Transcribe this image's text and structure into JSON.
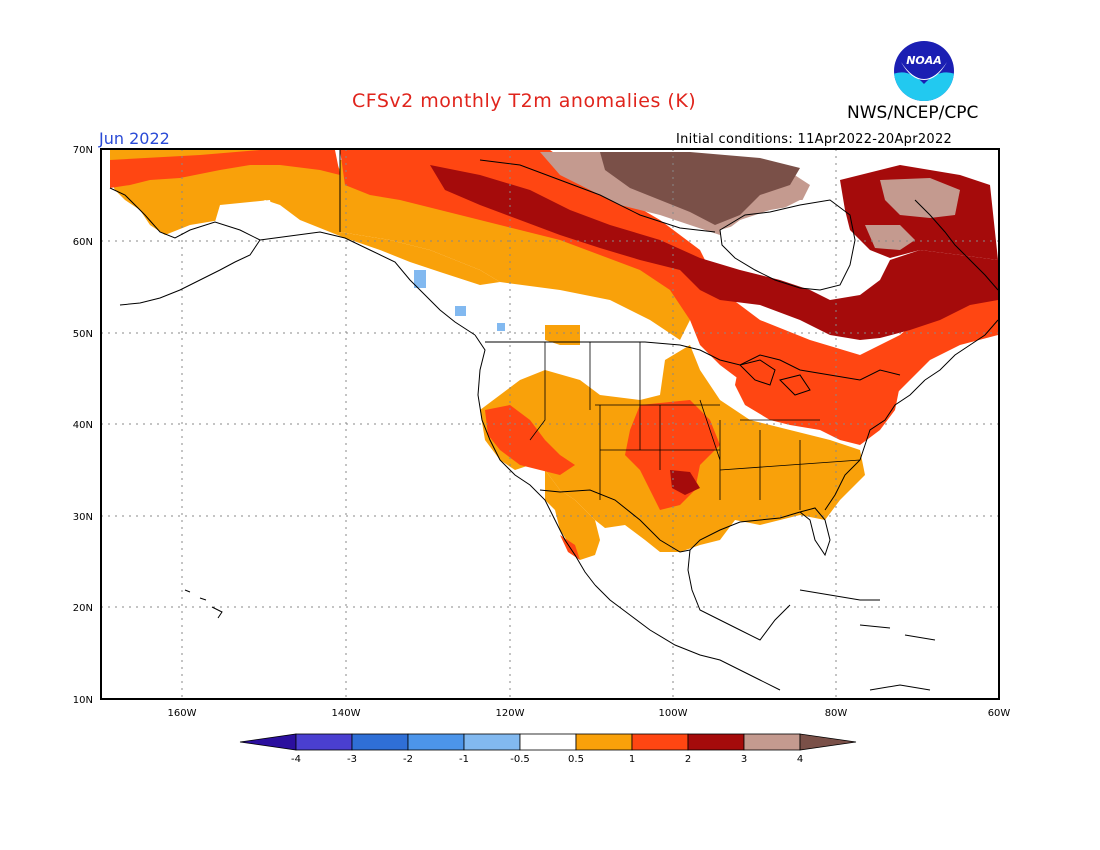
{
  "title": "CFSv2 monthly T2m anomalies (K)",
  "agency": "NWS/NCEP/CPC",
  "logo_text": "NOAA",
  "month": "Jun 2022",
  "initial_conditions": "Initial conditions: 11Apr2022-20Apr2022",
  "lat_ticks": [
    "70N",
    "60N",
    "50N",
    "40N",
    "30N",
    "20N",
    "10N"
  ],
  "lon_ticks": [
    "160W",
    "140W",
    "120W",
    "100W",
    "80W",
    "60W"
  ],
  "colorbar": {
    "labels": [
      "-4",
      "-3",
      "-2",
      "-1",
      "-0.5",
      "0.5",
      "1",
      "2",
      "3",
      "4"
    ],
    "colors": [
      "#2b0f9e",
      "#4a3fd0",
      "#2f6fd6",
      "#4c95ea",
      "#82b9f0",
      "#ffffff",
      "#f9a10a",
      "#ff4612",
      "#a50b0b",
      "#c49a8f",
      "#7a5048"
    ]
  },
  "colors": {
    "warm_0_5_1": "#f9a10a",
    "warm_1_2": "#ff4612",
    "warm_2_3": "#a50b0b",
    "warm_3_4": "#c49a8f",
    "warm_gt4": "#7a5048",
    "cool_neg0_5_neg1": "#82b9f0"
  }
}
